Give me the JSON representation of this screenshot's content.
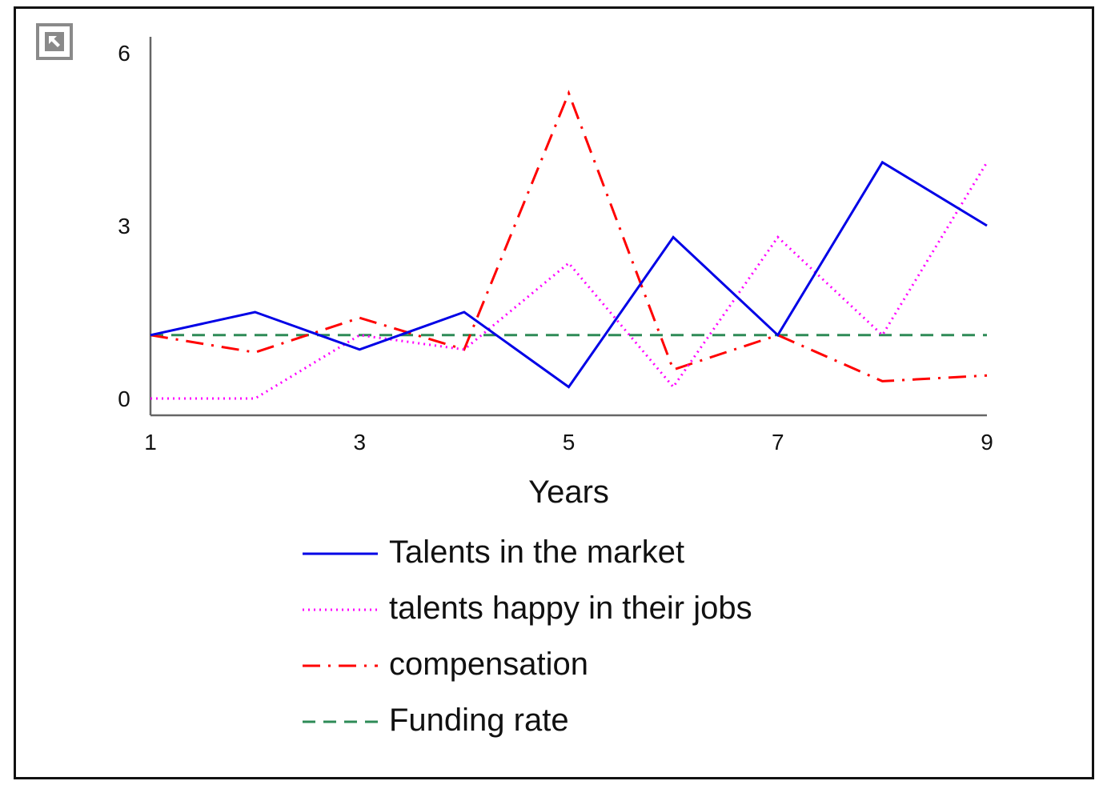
{
  "ui": {
    "expand_icon": "expand-arrow-icon",
    "expand_icon_color": "#8a8a8a"
  },
  "chart_data": {
    "type": "line",
    "title": "",
    "xlabel": "Years",
    "ylabel": "",
    "x": [
      1,
      2,
      3,
      4,
      5,
      6,
      7,
      8,
      9
    ],
    "x_ticks": [
      "1",
      "3",
      "5",
      "7",
      "9"
    ],
    "y_ticks": [
      "0",
      "3",
      "6"
    ],
    "xlim": [
      1,
      9
    ],
    "ylim": [
      -0.3,
      6.3
    ],
    "grid": false,
    "legend_position": "bottom",
    "series": [
      {
        "name": "Talents in the market",
        "color": "#0000e6",
        "style": "solid",
        "values": [
          1.1,
          1.5,
          0.85,
          1.5,
          0.2,
          2.8,
          1.1,
          4.1,
          3.0
        ]
      },
      {
        "name": "talents happy in their jobs",
        "color": "#ff00ff",
        "style": "dotted",
        "values": [
          0,
          0,
          1.1,
          0.85,
          2.35,
          0.2,
          2.8,
          1.1,
          4.1
        ]
      },
      {
        "name": "compensation",
        "color": "#ff0000",
        "style": "dashdot",
        "values": [
          1.1,
          0.8,
          1.4,
          0.85,
          5.3,
          0.5,
          1.1,
          0.3,
          0.4
        ]
      },
      {
        "name": "Funding rate",
        "color": "#2e8b57",
        "style": "dashed",
        "values": [
          1.1,
          1.1,
          1.1,
          1.1,
          1.1,
          1.1,
          1.1,
          1.1,
          1.1
        ]
      }
    ]
  }
}
